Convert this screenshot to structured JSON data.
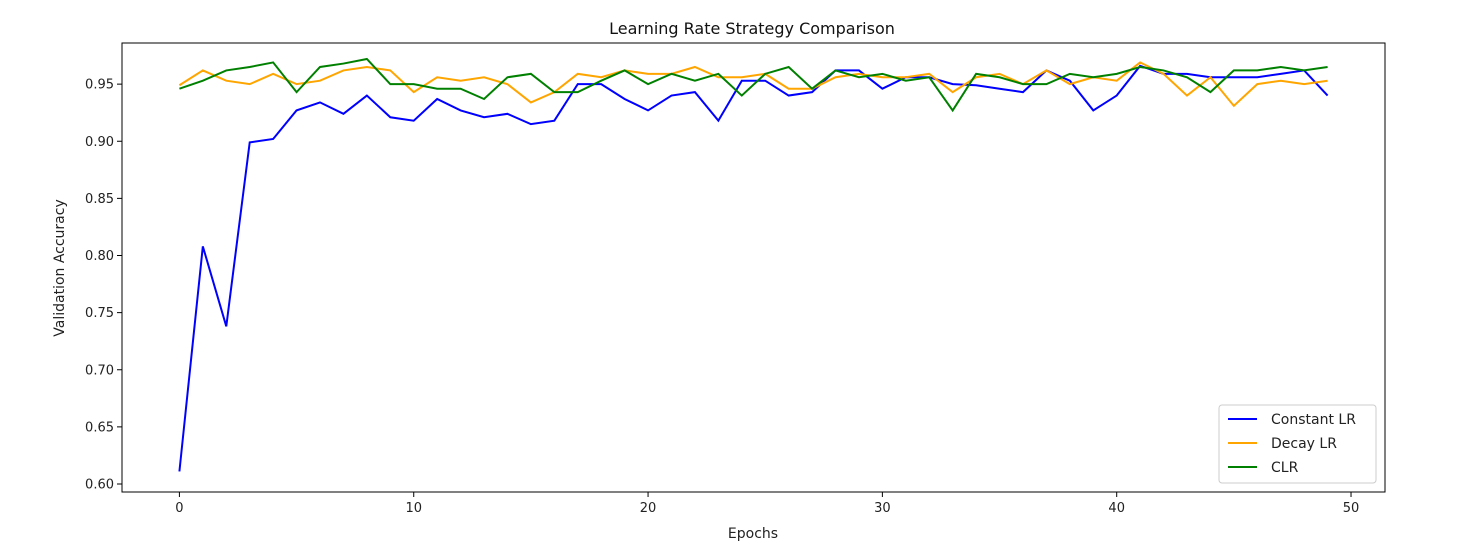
{
  "chart_data": {
    "type": "line",
    "title": "Learning Rate Strategy Comparison",
    "xlabel": "Epochs",
    "ylabel": "Validation Accuracy",
    "xlim": [
      -2.45,
      51.45
    ],
    "ylim": [
      0.593,
      0.986
    ],
    "xticks": [
      0,
      10,
      20,
      30,
      40,
      50
    ],
    "yticks": [
      0.6,
      0.65,
      0.7,
      0.75,
      0.8,
      0.85,
      0.9,
      0.95
    ],
    "grid": false,
    "legend_position": "bottom-right",
    "x": [
      0,
      1,
      2,
      3,
      4,
      5,
      6,
      7,
      8,
      9,
      10,
      11,
      12,
      13,
      14,
      15,
      16,
      17,
      18,
      19,
      20,
      21,
      22,
      23,
      24,
      25,
      26,
      27,
      28,
      29,
      30,
      31,
      32,
      33,
      34,
      35,
      36,
      37,
      38,
      39,
      40,
      41,
      42,
      43,
      44,
      45,
      46,
      47,
      48,
      49
    ],
    "series": [
      {
        "name": "Constant LR",
        "color": "#0000ff",
        "values": [
          0.611,
          0.808,
          0.738,
          0.899,
          0.902,
          0.927,
          0.934,
          0.924,
          0.94,
          0.921,
          0.918,
          0.937,
          0.927,
          0.921,
          0.924,
          0.915,
          0.918,
          0.95,
          0.95,
          0.937,
          0.927,
          0.94,
          0.943,
          0.918,
          0.953,
          0.953,
          0.94,
          0.943,
          0.962,
          0.962,
          0.946,
          0.956,
          0.956,
          0.95,
          0.949,
          0.946,
          0.943,
          0.962,
          0.953,
          0.927,
          0.94,
          0.966,
          0.959,
          0.959,
          0.956,
          0.956,
          0.956,
          0.959,
          0.962,
          0.94
        ]
      },
      {
        "name": "Decay LR",
        "color": "#ffa500",
        "values": [
          0.949,
          0.962,
          0.953,
          0.95,
          0.959,
          0.95,
          0.953,
          0.962,
          0.965,
          0.962,
          0.943,
          0.956,
          0.953,
          0.956,
          0.95,
          0.934,
          0.943,
          0.959,
          0.956,
          0.962,
          0.959,
          0.959,
          0.965,
          0.956,
          0.956,
          0.959,
          0.946,
          0.946,
          0.956,
          0.959,
          0.956,
          0.956,
          0.959,
          0.943,
          0.956,
          0.959,
          0.95,
          0.962,
          0.95,
          0.956,
          0.953,
          0.969,
          0.959,
          0.94,
          0.956,
          0.931,
          0.95,
          0.953,
          0.95,
          0.953
        ]
      },
      {
        "name": "CLR",
        "color": "#008000",
        "values": [
          0.946,
          0.953,
          0.962,
          0.965,
          0.969,
          0.943,
          0.965,
          0.968,
          0.972,
          0.95,
          0.95,
          0.946,
          0.946,
          0.937,
          0.956,
          0.959,
          0.943,
          0.943,
          0.953,
          0.962,
          0.95,
          0.959,
          0.953,
          0.959,
          0.94,
          0.959,
          0.965,
          0.946,
          0.962,
          0.956,
          0.959,
          0.953,
          0.956,
          0.927,
          0.959,
          0.956,
          0.95,
          0.95,
          0.959,
          0.956,
          0.959,
          0.965,
          0.962,
          0.956,
          0.943,
          0.962,
          0.962,
          0.965,
          0.962,
          0.965
        ]
      }
    ]
  }
}
